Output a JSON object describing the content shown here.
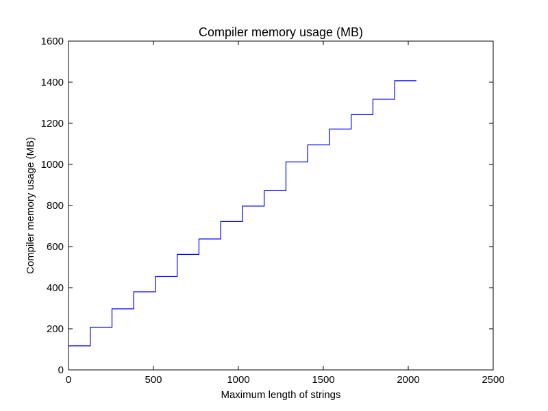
{
  "chart_data": {
    "type": "line",
    "title": "Compiler memory usage (MB)",
    "xlabel": "Maximum length of strings",
    "ylabel": "Compiler memory usage (MB)",
    "xlim": [
      0,
      2500
    ],
    "ylim": [
      0,
      1600
    ],
    "xticks": [
      0,
      500,
      1000,
      1500,
      2000,
      2500
    ],
    "yticks": [
      0,
      200,
      400,
      600,
      800,
      1000,
      1200,
      1400,
      1600
    ],
    "grid": false,
    "step": "post",
    "series": [
      {
        "color": "#0000ff",
        "x": [
          0,
          128,
          256,
          384,
          512,
          640,
          768,
          896,
          1024,
          1152,
          1280,
          1408,
          1536,
          1664,
          1792,
          1920,
          2048
        ],
        "y": [
          117,
          207,
          297,
          380,
          455,
          562,
          637,
          722,
          797,
          872,
          1012,
          1095,
          1172,
          1242,
          1317,
          1407,
          1407
        ]
      }
    ]
  }
}
